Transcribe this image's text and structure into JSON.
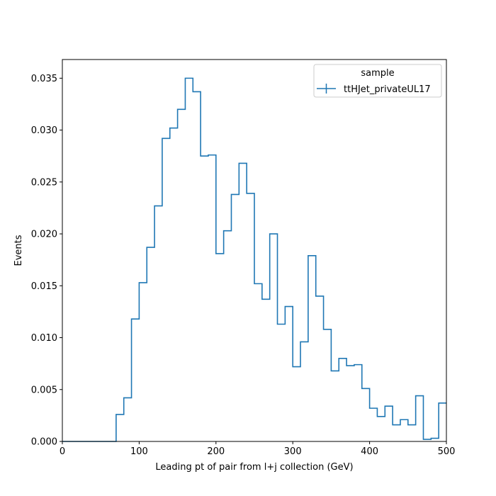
{
  "chart_data": {
    "type": "line",
    "style": "step-histogram",
    "title": "",
    "xlabel": "Leading pt of pair from l+j collection (GeV)",
    "ylabel": "Events",
    "xlim": [
      0,
      500
    ],
    "ylim": [
      0,
      0.0368
    ],
    "x_ticks": [
      "0",
      "100",
      "200",
      "300",
      "400",
      "500"
    ],
    "y_ticks": [
      "0.000",
      "0.005",
      "0.010",
      "0.015",
      "0.020",
      "0.025",
      "0.030",
      "0.035"
    ],
    "grid": false,
    "legend": {
      "title": "sample",
      "placement": "top-right"
    },
    "color": "#1f77b4",
    "bin_width": 10,
    "series": [
      {
        "name": "ttHJet_privateUL17",
        "bin_edges": [
          0,
          10,
          20,
          30,
          40,
          50,
          60,
          70,
          80,
          90,
          100,
          110,
          120,
          130,
          140,
          150,
          160,
          170,
          180,
          190,
          200,
          210,
          220,
          230,
          240,
          250,
          260,
          270,
          280,
          290,
          300,
          310,
          320,
          330,
          340,
          350,
          360,
          370,
          380,
          390,
          400,
          410,
          420,
          430,
          440,
          450,
          460,
          470,
          480,
          490,
          500
        ],
        "values": [
          0,
          0,
          0,
          0,
          0,
          0,
          0,
          0.0026,
          0.0042,
          0.0118,
          0.0153,
          0.0187,
          0.0227,
          0.0292,
          0.0302,
          0.032,
          0.035,
          0.0337,
          0.0275,
          0.0276,
          0.0181,
          0.0203,
          0.0238,
          0.0268,
          0.0239,
          0.0152,
          0.0137,
          0.02,
          0.0113,
          0.013,
          0.0072,
          0.0096,
          0.0179,
          0.014,
          0.0108,
          0.0068,
          0.008,
          0.0073,
          0.0074,
          0.0051,
          0.0032,
          0.0024,
          0.0034,
          0.0016,
          0.0021,
          0.0016,
          0.0044,
          0.0002,
          0.0003,
          0.0037
        ]
      }
    ]
  }
}
